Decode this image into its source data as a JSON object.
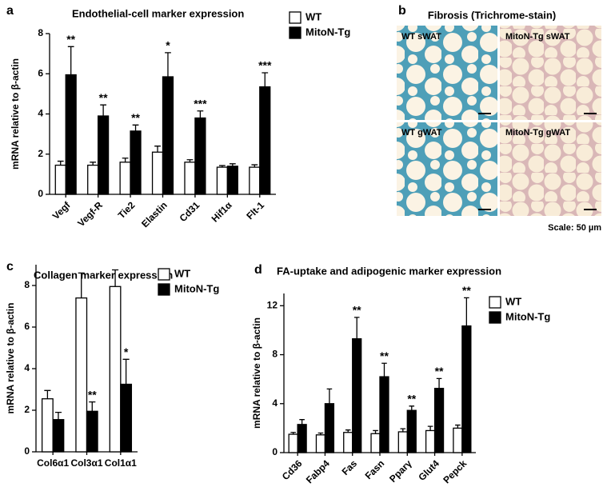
{
  "chart_data": [
    {
      "type": "bar",
      "panel": "a",
      "title": "Endothelial-cell marker expression",
      "y_label": "mRNA relative to β-actin",
      "categories": [
        "Vegf",
        "Vegf-R",
        "Tie2",
        "Elastin",
        "Cd31",
        "Hif1α",
        "Flt-1"
      ],
      "series": [
        {
          "name": "WT",
          "color": "#ffffff",
          "values": [
            1.45,
            1.45,
            1.6,
            2.1,
            1.6,
            1.35,
            1.35
          ],
          "errors": [
            0.2,
            0.15,
            0.2,
            0.3,
            0.12,
            0.08,
            0.12
          ]
        },
        {
          "name": "MitoN-Tg",
          "color": "#000000",
          "values": [
            5.95,
            3.9,
            3.15,
            5.85,
            3.8,
            1.4,
            5.35
          ],
          "errors": [
            1.4,
            0.55,
            0.3,
            1.2,
            0.35,
            0.12,
            0.7
          ]
        }
      ],
      "annotations": [
        "**",
        "**",
        "**",
        "*",
        "***",
        null,
        "***"
      ],
      "ylim": [
        0,
        8
      ],
      "yticks": [
        0,
        2,
        4,
        6,
        8
      ]
    },
    {
      "type": "bar",
      "panel": "c",
      "title": "Collagen marker expression",
      "y_label": "mRNA relative to β-actin",
      "categories": [
        "Col6α1",
        "Col3α1",
        "Col1α1"
      ],
      "series": [
        {
          "name": "WT",
          "color": "#ffffff",
          "values": [
            2.55,
            7.4,
            7.95
          ],
          "errors": [
            0.4,
            1.2,
            0.8
          ]
        },
        {
          "name": "MitoN-Tg",
          "color": "#000000",
          "values": [
            1.55,
            1.95,
            3.25
          ],
          "errors": [
            0.35,
            0.45,
            1.2
          ]
        }
      ],
      "annotations": [
        null,
        "**",
        "*"
      ],
      "ylim": [
        0,
        9
      ],
      "yticks": [
        0,
        2,
        4,
        6,
        8
      ]
    },
    {
      "type": "bar",
      "panel": "d",
      "title": "FA-uptake and adipogenic marker expression",
      "y_label": "mRNA relative to β-actin",
      "categories": [
        "Cd36",
        "Fabp4",
        "Fas",
        "Fasn",
        "Pparγ",
        "Glut4",
        "Pepck"
      ],
      "series": [
        {
          "name": "WT",
          "color": "#ffffff",
          "values": [
            1.5,
            1.45,
            1.65,
            1.55,
            1.7,
            1.8,
            2.0
          ],
          "errors": [
            0.15,
            0.15,
            0.2,
            0.25,
            0.25,
            0.35,
            0.25
          ]
        },
        {
          "name": "MitoN-Tg",
          "color": "#000000",
          "values": [
            2.3,
            4.0,
            9.3,
            6.2,
            3.45,
            5.25,
            10.35
          ],
          "errors": [
            0.4,
            1.2,
            1.75,
            1.1,
            0.35,
            0.8,
            2.3
          ]
        }
      ],
      "annotations": [
        null,
        null,
        "**",
        "**",
        "**",
        "**",
        "**"
      ],
      "ylim": [
        0,
        13
      ],
      "yticks": [
        0,
        4,
        8,
        12
      ]
    }
  ],
  "panel_b": {
    "panel": "b",
    "title": "Fibrosis (Trichrome-stain)",
    "images": [
      "WT sWAT",
      "MitoN-Tg sWAT",
      "WT gWAT",
      "MitoN-Tg gWAT"
    ],
    "scale": "Scale: 50 µm"
  }
}
